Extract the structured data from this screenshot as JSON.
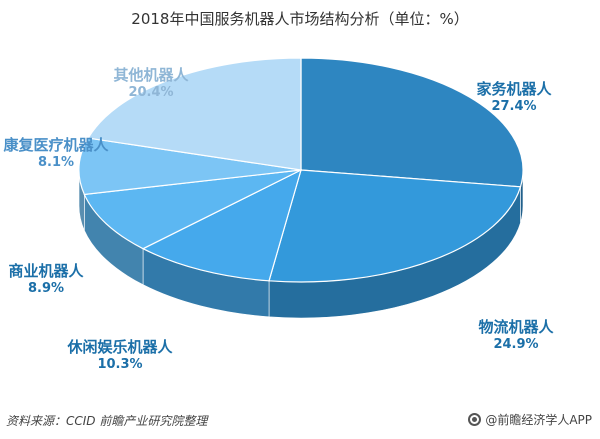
{
  "chart_data": {
    "type": "pie",
    "title": "2018年中国服务机器人市场结构分析（单位：%）",
    "slices": [
      {
        "label": "家务机器人",
        "value": 27.4,
        "value_label": "27.4%",
        "color": "#2e86c1",
        "label_color": "#1b6fa8"
      },
      {
        "label": "物流机器人",
        "value": 24.9,
        "value_label": "24.9%",
        "color": "#3399db",
        "label_color": "#1b6fa8"
      },
      {
        "label": "休闲娱乐机器人",
        "value": 10.3,
        "value_label": "10.3%",
        "color": "#45a9ec",
        "label_color": "#1b6fa8"
      },
      {
        "label": "商业机器人",
        "value": 8.9,
        "value_label": "8.9%",
        "color": "#5cb7f2",
        "label_color": "#1b6fa8"
      },
      {
        "label": "康复医疗机器人",
        "value": 8.1,
        "value_label": "8.1%",
        "color": "#7cc5f5",
        "label_color": "#4a90c8"
      },
      {
        "label": "其他机器人",
        "value": 20.4,
        "value_label": "20.4%",
        "color": "#b5dbf7",
        "label_color": "#8fb6d6"
      }
    ]
  },
  "footer": {
    "source": "资料来源：CCID 前瞻产业研究院整理",
    "brand": "@前瞻经济学人APP"
  },
  "colors": {
    "side_shade": "#1f6da3"
  }
}
